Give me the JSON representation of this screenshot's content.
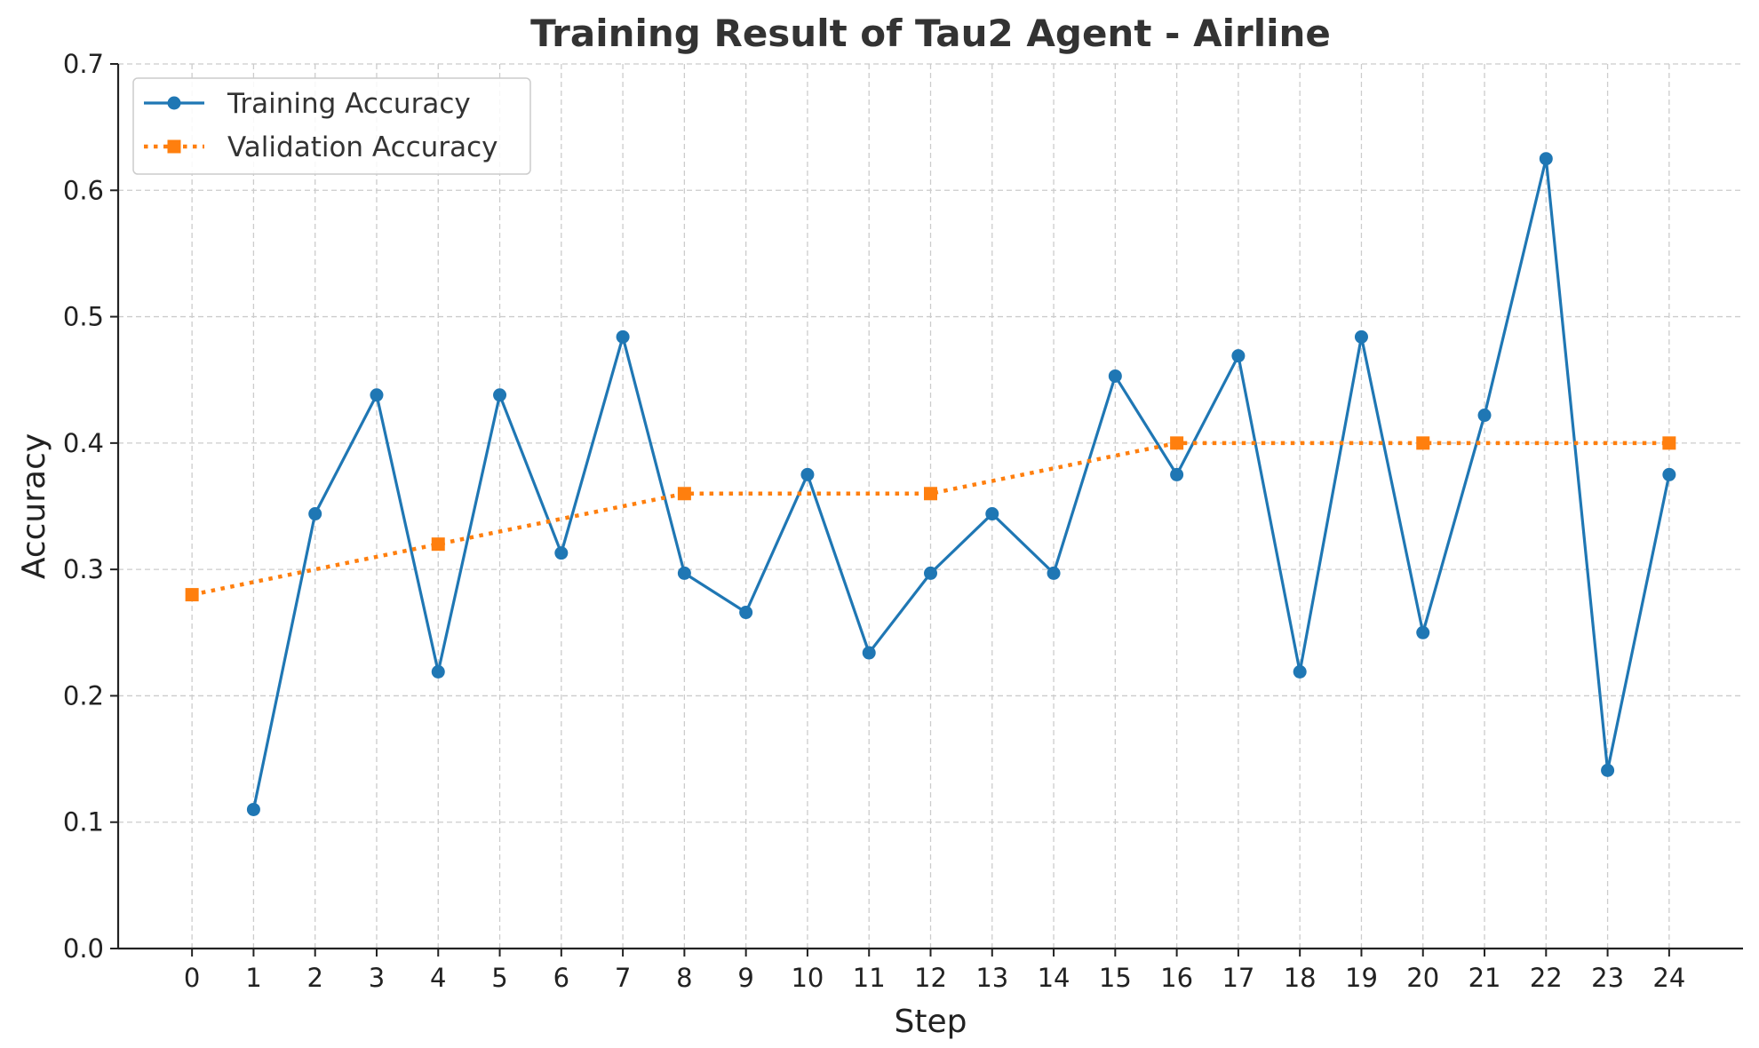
{
  "chart_data": {
    "type": "line",
    "title": "Training Result of Tau2 Agent - Airline",
    "xlabel": "Step",
    "ylabel": "Accuracy",
    "xlim": [
      -1.2,
      25.2
    ],
    "ylim": [
      0,
      0.7
    ],
    "x_ticks": [
      0,
      1,
      2,
      3,
      4,
      5,
      6,
      7,
      8,
      9,
      10,
      11,
      12,
      13,
      14,
      15,
      16,
      17,
      18,
      19,
      20,
      21,
      22,
      23,
      24
    ],
    "y_ticks": [
      0.0,
      0.1,
      0.2,
      0.3,
      0.4,
      0.5,
      0.6,
      0.7
    ],
    "y_tick_labels": [
      "0.0",
      "0.1",
      "0.2",
      "0.3",
      "0.4",
      "0.5",
      "0.6",
      "0.7"
    ],
    "grid": true,
    "legend_position": "top-left",
    "series": [
      {
        "name": "Training Accuracy",
        "color": "#1f77b4",
        "line_style": "solid",
        "marker": "circle",
        "x": [
          1,
          2,
          3,
          4,
          5,
          6,
          7,
          8,
          9,
          10,
          11,
          12,
          13,
          14,
          15,
          16,
          17,
          18,
          19,
          20,
          21,
          22,
          23,
          24
        ],
        "values": [
          0.11,
          0.344,
          0.438,
          0.219,
          0.438,
          0.313,
          0.484,
          0.297,
          0.266,
          0.375,
          0.234,
          0.297,
          0.344,
          0.297,
          0.453,
          0.375,
          0.469,
          0.219,
          0.484,
          0.25,
          0.422,
          0.625,
          0.141,
          0.375
        ]
      },
      {
        "name": "Validation Accuracy",
        "color": "#ff7f0e",
        "line_style": "dotted",
        "marker": "square",
        "x": [
          0,
          4,
          8,
          12,
          16,
          20,
          24
        ],
        "values": [
          0.28,
          0.32,
          0.36,
          0.36,
          0.4,
          0.4,
          0.4
        ]
      }
    ]
  }
}
